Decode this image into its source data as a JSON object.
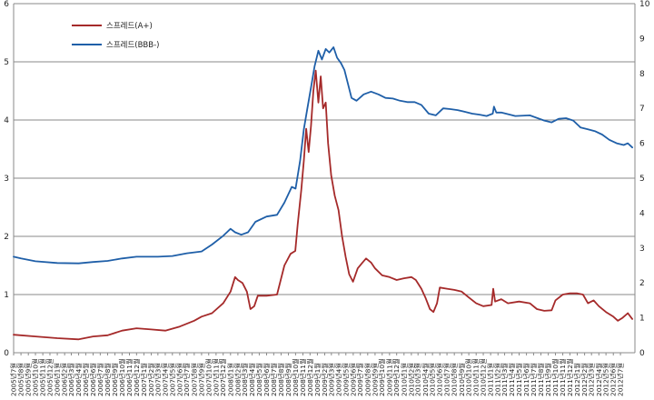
{
  "chart_data": {
    "type": "line",
    "title": "",
    "xlabel": "",
    "ylabel": "",
    "ylim": [
      0,
      6
    ],
    "y2lim": [
      0,
      10
    ],
    "yticks": [
      "0",
      "1",
      "2",
      "3",
      "4",
      "5",
      "6"
    ],
    "y2ticks": [
      "0",
      "1",
      "2",
      "3",
      "4",
      "5",
      "6",
      "7",
      "8",
      "9",
      "10"
    ],
    "grid": true,
    "legend": "top-left",
    "x_range": [
      "2005년7월",
      "2012년7월"
    ],
    "x_ticks_months": 85,
    "series": [
      {
        "name": "스프레드(A+)",
        "axis": "left",
        "color": "#a52a2a",
        "points": [
          [
            "2005-07-01",
            0.31
          ],
          [
            "2005-10-01",
            0.28
          ],
          [
            "2006-01-01",
            0.25
          ],
          [
            "2006-04-01",
            0.23
          ],
          [
            "2006-06-01",
            0.28
          ],
          [
            "2006-08-01",
            0.3
          ],
          [
            "2006-10-01",
            0.38
          ],
          [
            "2006-12-01",
            0.42
          ],
          [
            "2007-02-01",
            0.4
          ],
          [
            "2007-04-01",
            0.38
          ],
          [
            "2007-06-01",
            0.45
          ],
          [
            "2007-08-01",
            0.55
          ],
          [
            "2007-09-01",
            0.62
          ],
          [
            "2007-10-15",
            0.68
          ],
          [
            "2007-12-01",
            0.85
          ],
          [
            "2008-01-01",
            1.05
          ],
          [
            "2008-01-20",
            1.3
          ],
          [
            "2008-02-01",
            1.25
          ],
          [
            "2008-02-20",
            1.2
          ],
          [
            "2008-03-10",
            1.05
          ],
          [
            "2008-03-25",
            0.75
          ],
          [
            "2008-04-10",
            0.8
          ],
          [
            "2008-04-25",
            0.98
          ],
          [
            "2008-06-01",
            0.98
          ],
          [
            "2008-07-15",
            1.0
          ],
          [
            "2008-08-15",
            1.5
          ],
          [
            "2008-09-10",
            1.7
          ],
          [
            "2008-09-30",
            1.75
          ],
          [
            "2008-10-10",
            2.2
          ],
          [
            "2008-10-25",
            2.8
          ],
          [
            "2008-11-05",
            3.3
          ],
          [
            "2008-11-15",
            3.85
          ],
          [
            "2008-11-25",
            3.45
          ],
          [
            "2008-12-05",
            3.9
          ],
          [
            "2008-12-15",
            4.5
          ],
          [
            "2008-12-25",
            4.85
          ],
          [
            "2009-01-05",
            4.3
          ],
          [
            "2009-01-15",
            4.75
          ],
          [
            "2009-01-25",
            4.2
          ],
          [
            "2009-02-05",
            4.3
          ],
          [
            "2009-02-15",
            3.6
          ],
          [
            "2009-02-28",
            3.05
          ],
          [
            "2009-03-15",
            2.7
          ],
          [
            "2009-03-31",
            2.45
          ],
          [
            "2009-04-15",
            2.0
          ],
          [
            "2009-04-30",
            1.65
          ],
          [
            "2009-05-15",
            1.35
          ],
          [
            "2009-05-31",
            1.22
          ],
          [
            "2009-06-20",
            1.45
          ],
          [
            "2009-07-10",
            1.55
          ],
          [
            "2009-07-25",
            1.62
          ],
          [
            "2009-08-15",
            1.55
          ],
          [
            "2009-09-01",
            1.45
          ],
          [
            "2009-10-01",
            1.33
          ],
          [
            "2009-11-01",
            1.3
          ],
          [
            "2009-12-01",
            1.25
          ],
          [
            "2010-01-01",
            1.28
          ],
          [
            "2010-02-01",
            1.3
          ],
          [
            "2010-02-20",
            1.25
          ],
          [
            "2010-03-15",
            1.1
          ],
          [
            "2010-04-01",
            0.95
          ],
          [
            "2010-04-20",
            0.75
          ],
          [
            "2010-05-05",
            0.7
          ],
          [
            "2010-05-20",
            0.85
          ],
          [
            "2010-06-01",
            1.12
          ],
          [
            "2010-07-01",
            1.1
          ],
          [
            "2010-08-01",
            1.08
          ],
          [
            "2010-09-01",
            1.05
          ],
          [
            "2010-10-01",
            0.95
          ],
          [
            "2010-11-01",
            0.85
          ],
          [
            "2010-12-01",
            0.8
          ],
          [
            "2011-01-05",
            0.82
          ],
          [
            "2011-01-12",
            1.1
          ],
          [
            "2011-01-20",
            0.88
          ],
          [
            "2011-02-15",
            0.92
          ],
          [
            "2011-03-15",
            0.85
          ],
          [
            "2011-05-01",
            0.88
          ],
          [
            "2011-06-15",
            0.85
          ],
          [
            "2011-07-15",
            0.75
          ],
          [
            "2011-08-15",
            0.72
          ],
          [
            "2011-09-15",
            0.73
          ],
          [
            "2011-10-01",
            0.9
          ],
          [
            "2011-11-01",
            1.0
          ],
          [
            "2011-12-01",
            1.02
          ],
          [
            "2012-01-01",
            1.02
          ],
          [
            "2012-01-25",
            1.0
          ],
          [
            "2012-02-15",
            0.85
          ],
          [
            "2012-03-10",
            0.9
          ],
          [
            "2012-04-01",
            0.8
          ],
          [
            "2012-05-01",
            0.7
          ],
          [
            "2012-06-01",
            0.62
          ],
          [
            "2012-06-20",
            0.55
          ],
          [
            "2012-07-10",
            0.6
          ],
          [
            "2012-08-01",
            0.68
          ],
          [
            "2012-08-20",
            0.58
          ]
        ]
      },
      {
        "name": "스프레드(BBB-)",
        "axis": "right",
        "color": "#1f5fa8",
        "points": [
          [
            "2005-07-01",
            2.75
          ],
          [
            "2005-08-01",
            2.7
          ],
          [
            "2005-10-01",
            2.62
          ],
          [
            "2006-01-01",
            2.57
          ],
          [
            "2006-04-01",
            2.56
          ],
          [
            "2006-06-01",
            2.6
          ],
          [
            "2006-08-01",
            2.63
          ],
          [
            "2006-10-01",
            2.7
          ],
          [
            "2006-12-01",
            2.75
          ],
          [
            "2007-03-01",
            2.75
          ],
          [
            "2007-05-01",
            2.77
          ],
          [
            "2007-07-01",
            2.85
          ],
          [
            "2007-09-01",
            2.9
          ],
          [
            "2007-10-15",
            3.1
          ],
          [
            "2007-12-01",
            3.35
          ],
          [
            "2008-01-01",
            3.55
          ],
          [
            "2008-01-20",
            3.45
          ],
          [
            "2008-02-15",
            3.38
          ],
          [
            "2008-03-15",
            3.45
          ],
          [
            "2008-04-15",
            3.75
          ],
          [
            "2008-06-01",
            3.9
          ],
          [
            "2008-07-15",
            3.95
          ],
          [
            "2008-08-15",
            4.3
          ],
          [
            "2008-09-15",
            4.75
          ],
          [
            "2008-10-01",
            4.7
          ],
          [
            "2008-10-20",
            5.5
          ],
          [
            "2008-11-05",
            6.4
          ],
          [
            "2008-11-20",
            7.0
          ],
          [
            "2008-12-05",
            7.6
          ],
          [
            "2008-12-20",
            8.2
          ],
          [
            "2009-01-05",
            8.65
          ],
          [
            "2009-01-20",
            8.4
          ],
          [
            "2009-02-05",
            8.7
          ],
          [
            "2009-02-20",
            8.6
          ],
          [
            "2009-03-10",
            8.75
          ],
          [
            "2009-03-25",
            8.45
          ],
          [
            "2009-04-10",
            8.3
          ],
          [
            "2009-04-25",
            8.1
          ],
          [
            "2009-05-10",
            7.7
          ],
          [
            "2009-05-25",
            7.3
          ],
          [
            "2009-06-15",
            7.22
          ],
          [
            "2009-07-15",
            7.4
          ],
          [
            "2009-08-15",
            7.48
          ],
          [
            "2009-09-15",
            7.4
          ],
          [
            "2009-10-15",
            7.3
          ],
          [
            "2009-11-15",
            7.28
          ],
          [
            "2009-12-15",
            7.22
          ],
          [
            "2010-01-15",
            7.18
          ],
          [
            "2010-02-15",
            7.18
          ],
          [
            "2010-03-15",
            7.1
          ],
          [
            "2010-04-15",
            6.85
          ],
          [
            "2010-05-15",
            6.8
          ],
          [
            "2010-06-15",
            7.0
          ],
          [
            "2010-07-15",
            6.98
          ],
          [
            "2010-08-15",
            6.95
          ],
          [
            "2010-09-15",
            6.9
          ],
          [
            "2010-10-15",
            6.85
          ],
          [
            "2010-11-15",
            6.82
          ],
          [
            "2010-12-15",
            6.78
          ],
          [
            "2011-01-10",
            6.85
          ],
          [
            "2011-01-15",
            7.05
          ],
          [
            "2011-01-25",
            6.88
          ],
          [
            "2011-02-15",
            6.88
          ],
          [
            "2011-04-15",
            6.78
          ],
          [
            "2011-06-15",
            6.8
          ],
          [
            "2011-08-15",
            6.65
          ],
          [
            "2011-09-15",
            6.6
          ],
          [
            "2011-10-15",
            6.7
          ],
          [
            "2011-11-15",
            6.72
          ],
          [
            "2011-12-15",
            6.65
          ],
          [
            "2012-01-15",
            6.45
          ],
          [
            "2012-02-15",
            6.4
          ],
          [
            "2012-03-15",
            6.35
          ],
          [
            "2012-04-15",
            6.25
          ],
          [
            "2012-05-15",
            6.1
          ],
          [
            "2012-06-15",
            6.0
          ],
          [
            "2012-07-15",
            5.95
          ],
          [
            "2012-08-01",
            6.0
          ],
          [
            "2012-08-20",
            5.88
          ]
        ]
      }
    ]
  }
}
